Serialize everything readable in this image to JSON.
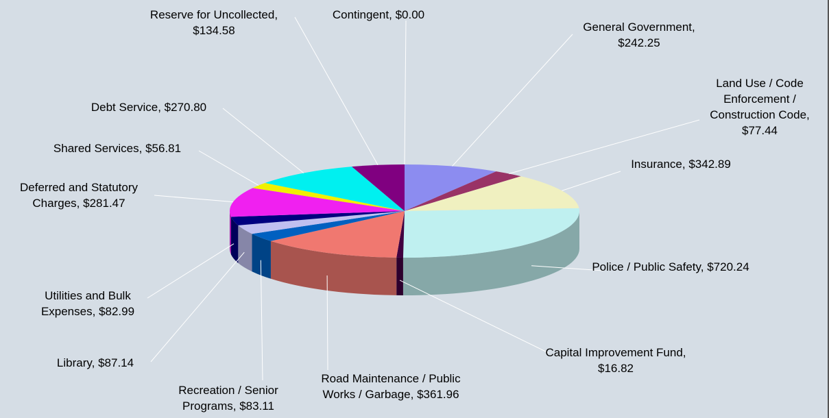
{
  "chart_data": {
    "type": "pie",
    "categories": [
      "General Government,",
      "Land Use / Code Enforcement / Construction Code,",
      "Insurance,",
      "Police / Public Safety,",
      "Capital Improvement Fund,",
      "Road Maintenance / Public Works / Garbage,",
      "Recreation / Senior Programs,",
      "Library,",
      "Utilities and Bulk Expenses,",
      "Deferred and Statutory Charges,",
      "Shared Services,",
      "Debt Service,",
      "Reserve for Uncollected,",
      "Contingent,"
    ],
    "values": [
      242.25,
      77.44,
      342.89,
      720.24,
      16.82,
      361.96,
      83.11,
      87.14,
      82.99,
      281.47,
      56.81,
      270.8,
      134.58,
      0.0
    ],
    "value_labels": [
      "$242.25",
      "$77.44",
      "$342.89",
      "$720.24",
      "$16.82",
      "$361.96",
      "$83.11",
      "$87.14",
      "$82.99",
      "$281.47",
      "$56.81",
      "$270.80",
      "$134.58",
      "$0.00"
    ],
    "colors": [
      "#8c8cf0",
      "#993366",
      "#f0f0c0",
      "#bff0f0",
      "#400040",
      "#f07870",
      "#0060c0",
      "#c0c0f0",
      "#000080",
      "#f020f0",
      "#f0f000",
      "#00f0f0",
      "#800080",
      "#606060"
    ]
  }
}
